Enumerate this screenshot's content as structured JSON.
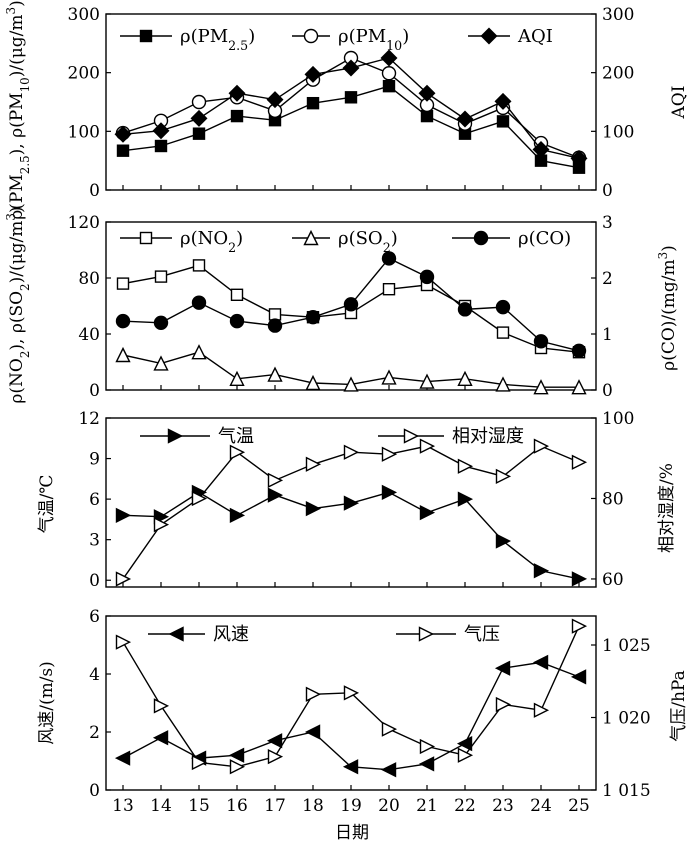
{
  "x_title": "日期",
  "days": [
    13,
    14,
    15,
    16,
    17,
    18,
    19,
    20,
    21,
    22,
    23,
    24,
    25
  ],
  "chart_data": [
    {
      "type": "line",
      "panel": "pm-aqi",
      "x": [
        13,
        14,
        15,
        16,
        17,
        18,
        19,
        20,
        21,
        22,
        23,
        24,
        25
      ],
      "ylabel_left": "ρ(PM2.5), ρ(PM10)/(μg/m3)",
      "ylabel_right": "AQI",
      "ylim_left": [
        0,
        300
      ],
      "ylim_right": [
        0,
        300
      ],
      "yticks_left": [
        0,
        100,
        200,
        300
      ],
      "yticks_right": [
        0,
        100,
        200,
        300
      ],
      "legend_position": "top",
      "series": [
        {
          "name": "ρ(PM2.5)",
          "marker": "filled-square",
          "axis": "left",
          "values": [
            67,
            75,
            96,
            126,
            119,
            148,
            158,
            177,
            126,
            96,
            117,
            50,
            38
          ]
        },
        {
          "name": "ρ(PM10)",
          "marker": "open-circle",
          "axis": "left",
          "values": [
            97,
            118,
            150,
            158,
            135,
            188,
            225,
            199,
            145,
            113,
            140,
            80,
            55
          ]
        },
        {
          "name": "AQI",
          "marker": "filled-diamond",
          "axis": "right",
          "values": [
            95,
            101,
            122,
            165,
            154,
            197,
            208,
            225,
            165,
            121,
            151,
            69,
            54
          ]
        }
      ]
    },
    {
      "type": "line",
      "panel": "gases",
      "x": [
        13,
        14,
        15,
        16,
        17,
        18,
        19,
        20,
        21,
        22,
        23,
        24,
        25
      ],
      "ylabel_left": "ρ(NO2), ρ(SO2)/(μg/m3)",
      "ylabel_right": "ρ(CO)/(mg/m3)",
      "ylim_left": [
        0,
        120
      ],
      "ylim_right": [
        0,
        3
      ],
      "yticks_left": [
        0,
        40,
        80,
        120
      ],
      "yticks_right": [
        0,
        1,
        2,
        3
      ],
      "legend_position": "top",
      "series": [
        {
          "name": "ρ(NO2)",
          "marker": "open-square",
          "axis": "left",
          "values": [
            76,
            81,
            89,
            68,
            54,
            52,
            55,
            72,
            75,
            60,
            41,
            30,
            27
          ]
        },
        {
          "name": "ρ(SO2)",
          "marker": "open-triangle",
          "axis": "left",
          "values": [
            25,
            19,
            27,
            8,
            11,
            5,
            4,
            9,
            6,
            8,
            4,
            2,
            2
          ]
        },
        {
          "name": "ρ(CO)",
          "marker": "filled-circle",
          "axis": "right",
          "values": [
            1.23,
            1.2,
            1.56,
            1.23,
            1.15,
            1.3,
            1.53,
            2.35,
            2.02,
            1.44,
            1.48,
            0.87,
            0.7
          ]
        }
      ]
    },
    {
      "type": "line",
      "panel": "temp-humidity",
      "x": [
        13,
        14,
        15,
        16,
        17,
        18,
        19,
        20,
        21,
        22,
        23,
        24,
        25
      ],
      "ylabel_left": "气温/℃",
      "ylabel_right": "相对湿度/%",
      "ylim_left": [
        -0.5,
        12
      ],
      "ylim_right": [
        58,
        100
      ],
      "yticks_left": [
        0,
        3,
        6,
        9,
        12
      ],
      "yticks_right": [
        60,
        80,
        100
      ],
      "legend_position": "top",
      "series": [
        {
          "name": "气温",
          "marker": "filled-right-triangle",
          "axis": "left",
          "values": [
            4.8,
            4.7,
            6.5,
            4.8,
            6.3,
            5.3,
            5.7,
            6.5,
            5.0,
            6.0,
            2.9,
            0.7,
            0.1
          ]
        },
        {
          "name": "相对湿度",
          "marker": "open-right-triangle",
          "axis": "right",
          "values": [
            60,
            73.5,
            80,
            91.5,
            84.5,
            88.5,
            91.5,
            91,
            93,
            88,
            85.5,
            93,
            89
          ]
        }
      ]
    },
    {
      "type": "line",
      "panel": "wind-pressure",
      "x": [
        13,
        14,
        15,
        16,
        17,
        18,
        19,
        20,
        21,
        22,
        23,
        24,
        25
      ],
      "ylabel_left": "风速/(m/s)",
      "ylabel_right": "气压/hPa",
      "ylim_left": [
        0,
        6
      ],
      "ylim_right": [
        1015,
        1027
      ],
      "yticks_left": [
        0,
        2,
        4,
        6
      ],
      "yticks_right": [
        1015,
        1020,
        1025
      ],
      "yticklabels_right": [
        "1 015",
        "1 020",
        "1 025"
      ],
      "legend_position": "top",
      "series": [
        {
          "name": "风速",
          "marker": "filled-left-triangle",
          "axis": "left",
          "values": [
            1.1,
            1.8,
            1.1,
            1.2,
            1.7,
            2.0,
            0.8,
            0.7,
            0.9,
            1.6,
            4.2,
            4.4,
            3.9
          ]
        },
        {
          "name": "气压",
          "marker": "open-right-triangle",
          "axis": "right",
          "values": [
            1025.2,
            1020.8,
            1016.9,
            1016.6,
            1017.3,
            1021.6,
            1021.7,
            1019.2,
            1018.0,
            1017.4,
            1020.9,
            1020.5,
            1026.3
          ]
        }
      ]
    }
  ]
}
